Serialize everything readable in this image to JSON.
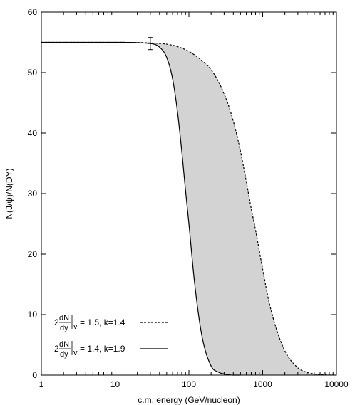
{
  "chart_data": {
    "type": "line",
    "xlabel": "c.m. energy (GeV/nucleon)",
    "ylabel": "N(J/ψ)/N(DY)",
    "xscale": "log",
    "xlim": [
      1,
      10000
    ],
    "ylim": [
      0,
      60
    ],
    "x_ticks": [
      1,
      10,
      100,
      1000,
      10000
    ],
    "x_tick_labels": [
      "1",
      "10",
      "100",
      "1000",
      "10000"
    ],
    "y_ticks": [
      0,
      10,
      20,
      30,
      40,
      50,
      60
    ],
    "y_tick_labels": [
      "0",
      "10",
      "20",
      "30",
      "40",
      "50",
      "60"
    ],
    "grid": false,
    "legend_position": "bottom-left",
    "fill_between_series": true,
    "fill_color": "#d3d3d3",
    "series": [
      {
        "legend_prefix": "2",
        "legend_frac_num": "dN",
        "legend_frac_den": "dy",
        "legend_sub": "v",
        "legend_suffix": "= 1.5, k=1.4",
        "style": "dashed",
        "color": "#000000",
        "x": [
          1,
          10,
          30,
          50,
          70,
          100,
          150,
          200,
          300,
          400,
          500,
          600,
          700,
          800,
          1000,
          1200,
          1500,
          2000,
          3000,
          4000,
          5000,
          7000,
          10000
        ],
        "y": [
          55,
          55,
          54.9,
          54.7,
          54.3,
          53.5,
          52,
          50.5,
          46.5,
          42,
          37,
          32,
          27.5,
          24,
          17.5,
          12.5,
          8,
          4,
          1.2,
          0.45,
          0.18,
          0.05,
          0
        ]
      },
      {
        "legend_prefix": "2",
        "legend_frac_num": "dN",
        "legend_frac_den": "dy",
        "legend_sub": "v",
        "legend_suffix": "= 1.4, k=1.9",
        "style": "solid",
        "color": "#000000",
        "x": [
          1,
          10,
          30,
          40,
          50,
          60,
          70,
          80,
          90,
          100,
          120,
          150,
          200,
          250,
          300,
          400,
          500
        ],
        "y": [
          55,
          55,
          54.8,
          54.2,
          52.5,
          49,
          43.5,
          37,
          30.5,
          25,
          15,
          6.5,
          1.5,
          0.5,
          0.2,
          0,
          0
        ]
      }
    ],
    "error_bar": {
      "x": 30,
      "y": 54.8,
      "ylow": 53.8,
      "yhigh": 55.8
    }
  }
}
